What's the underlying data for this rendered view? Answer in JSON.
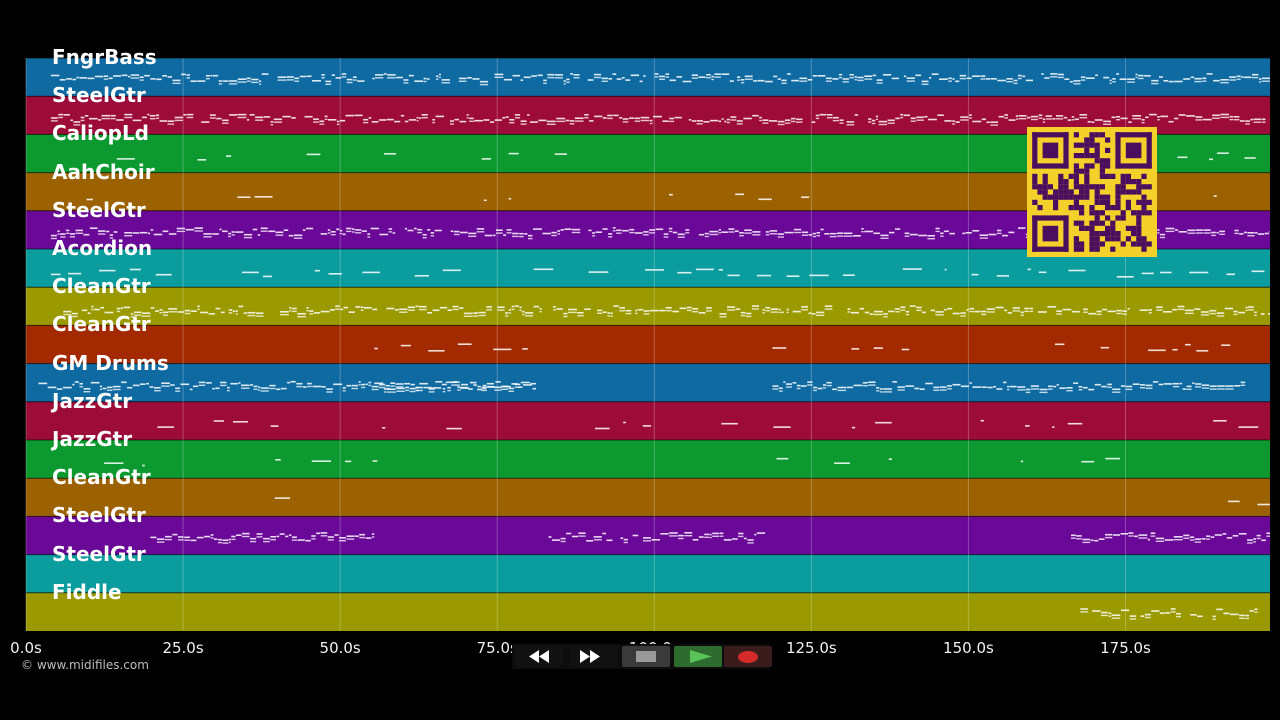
{
  "tracks": [
    {
      "name": "FngrBass",
      "color": "#0f6aa1",
      "density": 0.95,
      "regions": [
        [
          0.02,
          1.0
        ]
      ]
    },
    {
      "name": "SteelGtr",
      "color": "#9d0c39",
      "density": 0.95,
      "regions": [
        [
          0.02,
          1.0
        ]
      ]
    },
    {
      "name": "CaliopLd",
      "color": "#0c9a30",
      "density": 0.5,
      "regions": [
        [
          0.05,
          0.7
        ],
        [
          0.91,
          1.0
        ]
      ]
    },
    {
      "name": "AahChoir",
      "color": "#9c6100",
      "density": 0.6,
      "regions": [
        [
          0.03,
          0.08
        ],
        [
          0.17,
          0.21
        ],
        [
          0.25,
          0.39
        ],
        [
          0.5,
          0.52
        ],
        [
          0.57,
          0.7
        ],
        [
          0.9,
          1.0
        ]
      ]
    },
    {
      "name": "SteelGtr",
      "color": "#6a0898",
      "density": 0.95,
      "regions": [
        [
          0.02,
          1.0
        ]
      ]
    },
    {
      "name": "Acordion",
      "color": "#0b9c9d",
      "density": 0.8,
      "regions": [
        [
          0.02,
          0.37
        ],
        [
          0.38,
          0.74
        ],
        [
          0.76,
          1.0
        ]
      ]
    },
    {
      "name": "CleanGtr",
      "color": "#9a9a00",
      "density": 0.9,
      "regions": [
        [
          0.03,
          1.0
        ]
      ]
    },
    {
      "name": "CleanGtr",
      "color": "#a32a00",
      "density": 0.8,
      "regions": [
        [
          0.28,
          0.41
        ],
        [
          0.6,
          0.71
        ],
        [
          0.81,
          1.0
        ]
      ]
    },
    {
      "name": "GM Drums",
      "color": "#0f6aa1",
      "density": 1.0,
      "regions": [
        [
          0.01,
          0.41
        ],
        [
          0.28,
          0.41
        ],
        [
          0.6,
          0.98
        ]
      ]
    },
    {
      "name": "JazzGtr",
      "color": "#9d0c39",
      "density": 0.35,
      "regions": [
        [
          0.02,
          1.0
        ]
      ]
    },
    {
      "name": "JazzGtr",
      "color": "#0c9a30",
      "density": 0.3,
      "regions": [
        [
          0.03,
          0.99
        ]
      ]
    },
    {
      "name": "CleanGtr",
      "color": "#9c6100",
      "density": 0.25,
      "regions": [
        [
          0.2,
          0.28
        ],
        [
          0.6,
          0.62
        ],
        [
          0.94,
          1.0
        ]
      ]
    },
    {
      "name": "SteelGtr",
      "color": "#6a0898",
      "density": 0.9,
      "regions": [
        [
          0.1,
          0.28
        ],
        [
          0.42,
          0.6
        ],
        [
          0.84,
          1.0
        ]
      ]
    },
    {
      "name": "SteelGtr",
      "color": "#0b9c9d",
      "density": 0.2,
      "regions": [
        [
          0.23,
          0.25
        ],
        [
          0.81,
          0.83
        ]
      ]
    },
    {
      "name": "Fiddle",
      "color": "#9a9a00",
      "density": 0.9,
      "regions": [
        [
          0.84,
          0.99
        ]
      ]
    }
  ],
  "timeline": {
    "end_seconds": 198,
    "ticks": [
      "0.0s",
      "25.0s",
      "50.0s",
      "75.0s",
      "100.0s",
      "125.0s",
      "150.0s",
      "175.0s"
    ],
    "tick_values": [
      0,
      25,
      50,
      75,
      100,
      125,
      150,
      175
    ]
  },
  "copyright": "© www.midifiles.com",
  "transport": {
    "buttons": [
      {
        "name": "rewind-button",
        "icon": "rewind-icon",
        "fill": "#111111",
        "glyph": "#ffffff"
      },
      {
        "name": "fast-forward-button",
        "icon": "fast-forward-icon",
        "fill": "#111111",
        "glyph": "#ffffff"
      },
      {
        "name": "stop-button",
        "icon": "stop-icon",
        "fill": "#3a3a3a",
        "glyph": "#999999"
      },
      {
        "name": "play-button",
        "icon": "play-icon",
        "fill": "#2e6b2e",
        "glyph": "#59c359"
      },
      {
        "name": "record-button",
        "icon": "record-icon",
        "fill": "#3a1c1c",
        "glyph": "#d62b2b"
      }
    ]
  },
  "qr_code": {
    "icon": "qr-code-icon",
    "fill": "#f4d02a",
    "ink": "#4a0e5e"
  }
}
